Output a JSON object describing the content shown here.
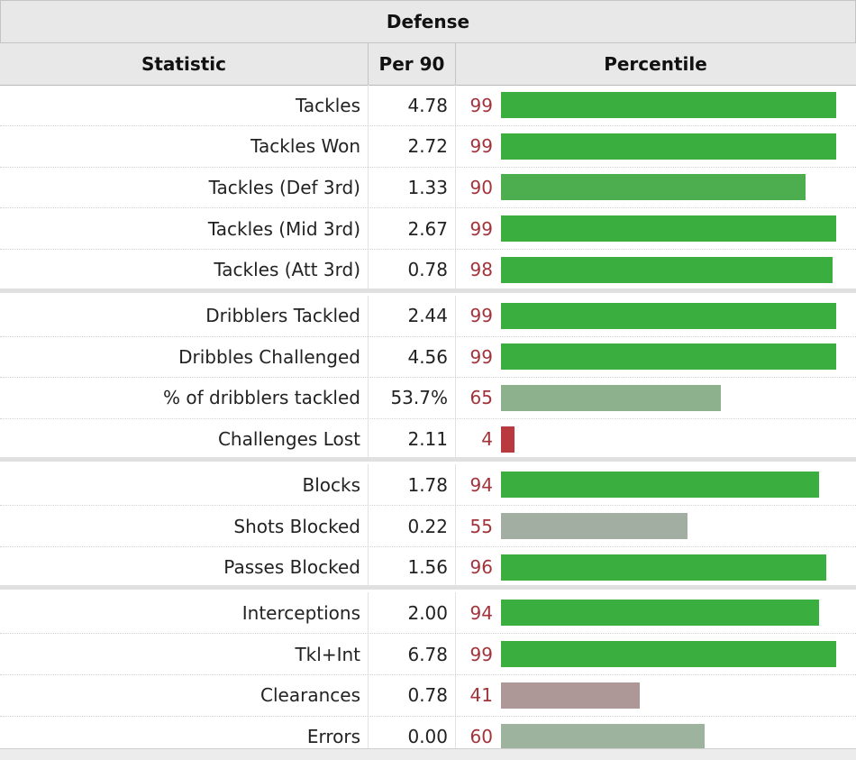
{
  "chart_data": {
    "type": "bar",
    "title": "Defense",
    "columns": [
      "Statistic",
      "Per 90",
      "Percentile"
    ],
    "xlim": [
      0,
      100
    ],
    "groups": [
      [
        {
          "stat": "Tackles",
          "per90": "4.78",
          "percentile": 99,
          "color": "#3aae3f"
        },
        {
          "stat": "Tackles Won",
          "per90": "2.72",
          "percentile": 99,
          "color": "#3aae3f"
        },
        {
          "stat": "Tackles (Def 3rd)",
          "per90": "1.33",
          "percentile": 90,
          "color": "#4cae4e"
        },
        {
          "stat": "Tackles (Mid 3rd)",
          "per90": "2.67",
          "percentile": 99,
          "color": "#3aae3f"
        },
        {
          "stat": "Tackles (Att 3rd)",
          "per90": "0.78",
          "percentile": 98,
          "color": "#3aae3f"
        }
      ],
      [
        {
          "stat": "Dribblers Tackled",
          "per90": "2.44",
          "percentile": 99,
          "color": "#3aae3f"
        },
        {
          "stat": "Dribbles Challenged",
          "per90": "4.56",
          "percentile": 99,
          "color": "#3aae3f"
        },
        {
          "stat": "% of dribblers tackled",
          "per90": "53.7%",
          "percentile": 65,
          "color": "#8db08d"
        },
        {
          "stat": "Challenges Lost",
          "per90": "2.11",
          "percentile": 4,
          "color": "#b83a3f"
        }
      ],
      [
        {
          "stat": "Blocks",
          "per90": "1.78",
          "percentile": 94,
          "color": "#3aae3f"
        },
        {
          "stat": "Shots Blocked",
          "per90": "0.22",
          "percentile": 55,
          "color": "#a3aea3"
        },
        {
          "stat": "Passes Blocked",
          "per90": "1.56",
          "percentile": 96,
          "color": "#3aae3f"
        }
      ],
      [
        {
          "stat": "Interceptions",
          "per90": "2.00",
          "percentile": 94,
          "color": "#3aae3f"
        },
        {
          "stat": "Tkl+Int",
          "per90": "6.78",
          "percentile": 99,
          "color": "#3aae3f"
        },
        {
          "stat": "Clearances",
          "per90": "0.78",
          "percentile": 41,
          "color": "#ad9797"
        },
        {
          "stat": "Errors",
          "per90": "0.00",
          "percentile": 60,
          "color": "#9db39d"
        }
      ]
    ]
  }
}
